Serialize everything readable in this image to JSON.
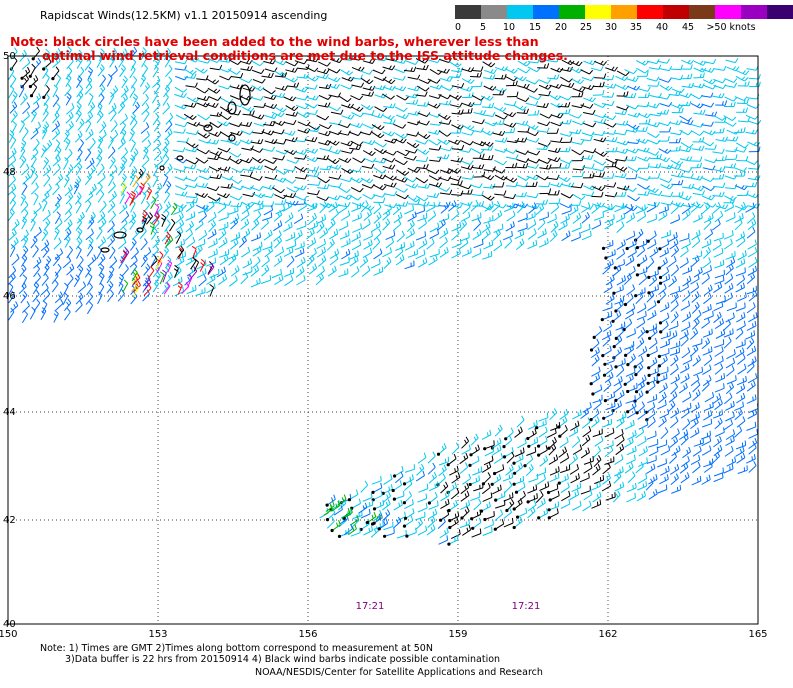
{
  "title": "Rapidscat Winds(12.5KM) v1.1 20150914 ascending",
  "note_line1": "Note: black circles have been added to the wind barbs, wherever less than",
  "note_line2": "optimal wind retrieval conditions are met due to the ISS attitude changes.",
  "scale": {
    "colors": [
      "#3a3a3a",
      "#8a8a8a",
      "#00c8f0",
      "#0070ff",
      "#00b000",
      "#ffff00",
      "#ffa000",
      "#ff0000",
      "#c00000",
      "#7a3a1a",
      "#ff00ff",
      "#9a00c0",
      "#3a0070"
    ],
    "labels": [
      "0",
      "5",
      "10",
      "15",
      "20",
      "25",
      "30",
      "35",
      "40",
      "45",
      ">50 knots"
    ]
  },
  "map": {
    "lon_labels": [
      "150",
      "153",
      "156",
      "159",
      "162",
      "165"
    ],
    "lat_labels": [
      "50",
      "48",
      "46",
      "44",
      "42",
      "40"
    ],
    "time_labels": [
      "17:21",
      "17:21"
    ]
  },
  "footer": {
    "line1": "Note: 1) Times are GMT 2)Times along bottom correspond to measurement at 50N",
    "line2": "3)Data buffer is 22 hrs from 20150914 4) Black wind barbs indicate possible contamination",
    "line3": "NOAA/NESDIS/Center for Satellite Applications and Research"
  }
}
